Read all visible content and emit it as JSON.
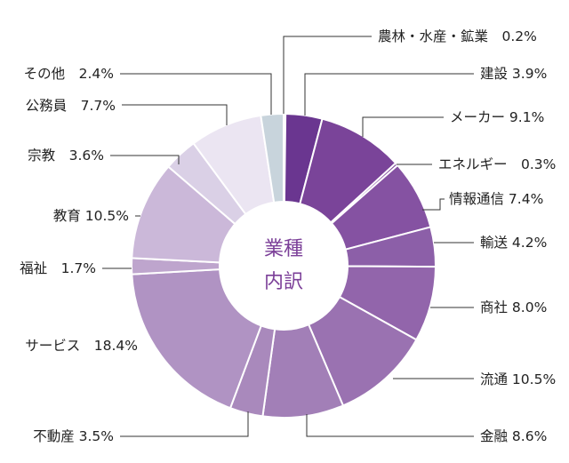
{
  "chart_data": {
    "type": "pie",
    "donut": true,
    "center_label": [
      "業種",
      "内訳"
    ],
    "categories": [
      "農林・水産・鉱業",
      "建設",
      "メーカー",
      "エネルギー",
      "情報通信",
      "輸送",
      "商社",
      "流通",
      "金融",
      "不動産",
      "サービス",
      "福祉",
      "教育",
      "宗教",
      "公務員",
      "その他"
    ],
    "labels": [
      "農林・水産・鉱業　0.2%",
      "建設 3.9%",
      "メーカー 9.1%",
      "エネルギー　0.3%",
      "情報通信 7.4%",
      "輸送 4.2%",
      "商社 8.0%",
      "流通 10.5%",
      "金融 8.6%",
      "不動産 3.5%",
      "サービス　18.4%",
      "福祉　1.7%",
      "教育 10.5%",
      "宗教　3.6%",
      "公務員　7.7%",
      "その他　2.4%"
    ],
    "values": [
      0.2,
      3.9,
      9.1,
      0.3,
      7.4,
      4.2,
      8.0,
      10.5,
      8.6,
      3.5,
      18.4,
      1.7,
      10.5,
      3.6,
      7.7,
      2.4
    ],
    "colors": [
      "#6a3690",
      "#6a3690",
      "#7a4499",
      "#7a4499",
      "#8552a2",
      "#8c5fa8",
      "#9265ab",
      "#9a72b1",
      "#a27fb7",
      "#a989bc",
      "#b093c3",
      "#bea5cd",
      "#cbb8d9",
      "#dad0e6",
      "#ebe5f2",
      "#c8d4dc"
    ],
    "start": "top",
    "direction": "clockwise"
  }
}
